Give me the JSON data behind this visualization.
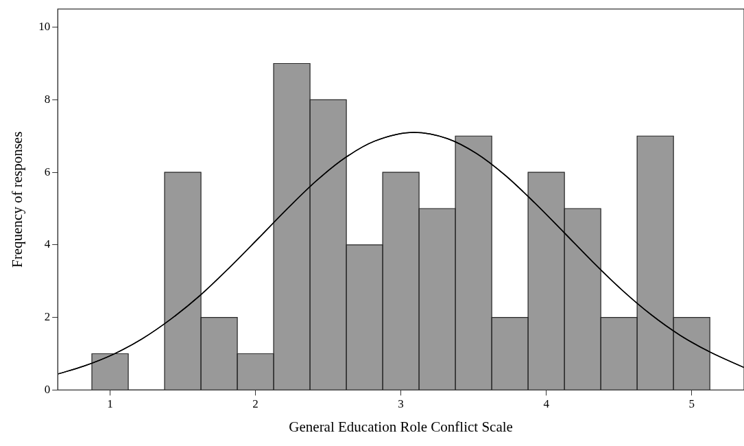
{
  "chart_data": {
    "type": "histogram",
    "xlabel": "General Education Role Conflict Scale",
    "ylabel": "Frequency of responses",
    "xlim": [
      0.64,
      5.36
    ],
    "xticks": [
      1,
      2,
      3,
      4,
      5
    ],
    "ylim": [
      0,
      10.5
    ],
    "yticks": [
      0,
      2,
      4,
      6,
      8,
      10
    ],
    "grid": false,
    "legend": false,
    "marker": "none",
    "line_style": "solid",
    "color": "#999999",
    "bins": [
      0.875,
      1.125,
      1.375,
      1.625,
      1.875,
      2.125,
      2.375,
      2.625,
      2.875,
      3.125,
      3.375,
      3.625,
      3.875,
      4.125,
      4.375,
      4.625,
      4.875,
      5.125
    ],
    "values": [
      1,
      0,
      6,
      2,
      1,
      9,
      8,
      4,
      6,
      5,
      7,
      2,
      6,
      5,
      2,
      7,
      2
    ],
    "series": [
      {
        "type": "line",
        "color": "#000000",
        "x": [
          0.64,
          0.82,
          1.02,
          1.22,
          1.42,
          1.62,
          1.82,
          2.02,
          2.22,
          2.42,
          2.62,
          2.82,
          3.09,
          3.32,
          3.52,
          3.72,
          3.92,
          4.12,
          4.32,
          4.52,
          4.72,
          4.92,
          5.12,
          5.36
        ],
        "values": [
          0.44,
          0.66,
          0.98,
          1.41,
          1.96,
          2.61,
          3.37,
          4.18,
          5.0,
          5.77,
          6.41,
          6.86,
          7.1,
          6.93,
          6.52,
          5.91,
          5.16,
          4.35,
          3.53,
          2.76,
          2.08,
          1.51,
          1.06,
          0.62
        ]
      }
    ]
  }
}
